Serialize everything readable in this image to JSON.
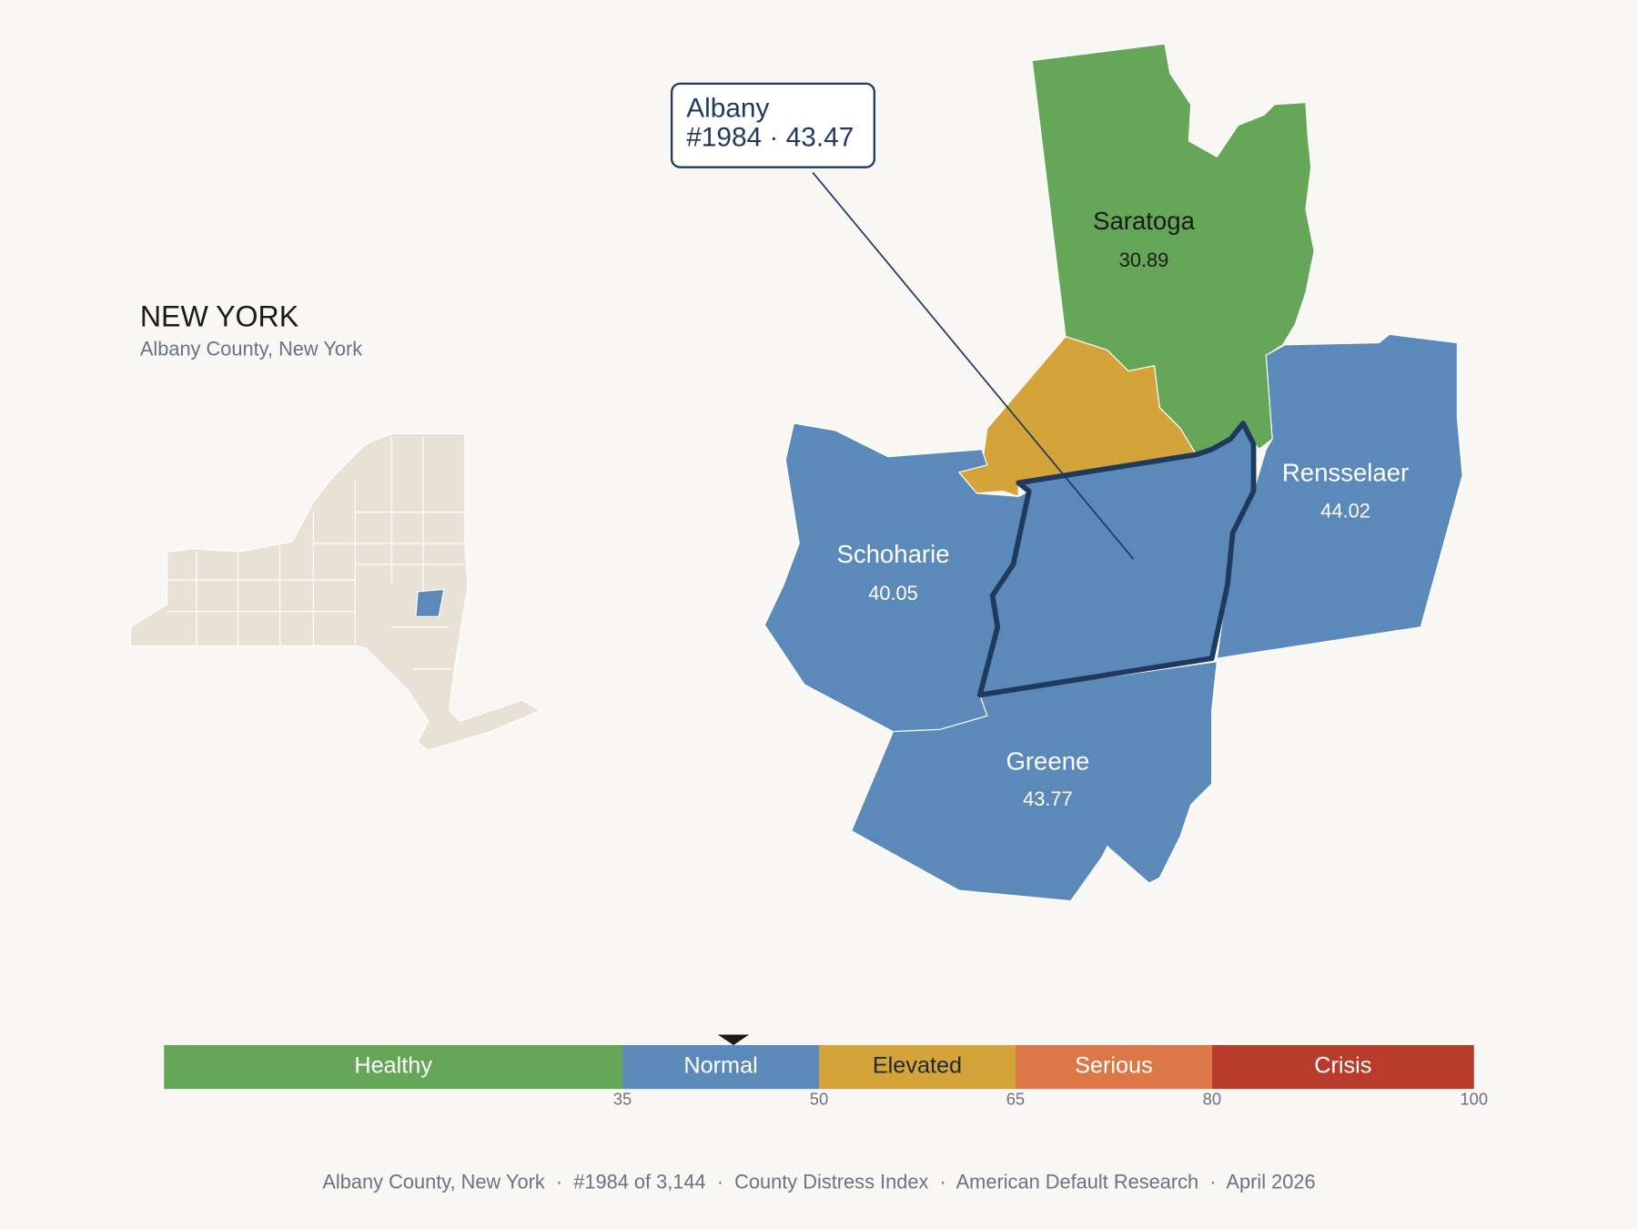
{
  "header": {
    "title": "NEW YORK",
    "subtitle": "Albany County, New York"
  },
  "selected": {
    "name": "Albany",
    "detail": "#1984 · 43.47",
    "score": 43.47
  },
  "counties": [
    {
      "name": "Saratoga",
      "value": 30.89
    },
    {
      "name": "Schoharie",
      "value": 40.05
    },
    {
      "name": "Rensselaer",
      "value": 44.02
    },
    {
      "name": "Greene",
      "value": 43.77
    }
  ],
  "scale": {
    "lim": [
      0,
      100
    ],
    "ticks": [
      35,
      50,
      65,
      80,
      100
    ],
    "segments": [
      {
        "name": "Healthy",
        "color": "#66a659",
        "text_color": "#ffffff"
      },
      {
        "name": "Normal",
        "color": "#5b8aba",
        "text_color": "#ffffff"
      },
      {
        "name": "Elevated",
        "color": "#d4a33a",
        "text_color": "#1f2937"
      },
      {
        "name": "Serious",
        "color": "#dc7847",
        "text_color": "#ffffff"
      },
      {
        "name": "Crisis",
        "color": "#b83c2b",
        "text_color": "#ffffff"
      }
    ]
  },
  "footer": "Albany County, New York  ·  #1984 of 3,144  ·  County Distress Index  ·  American Default Research  ·  April 2026"
}
